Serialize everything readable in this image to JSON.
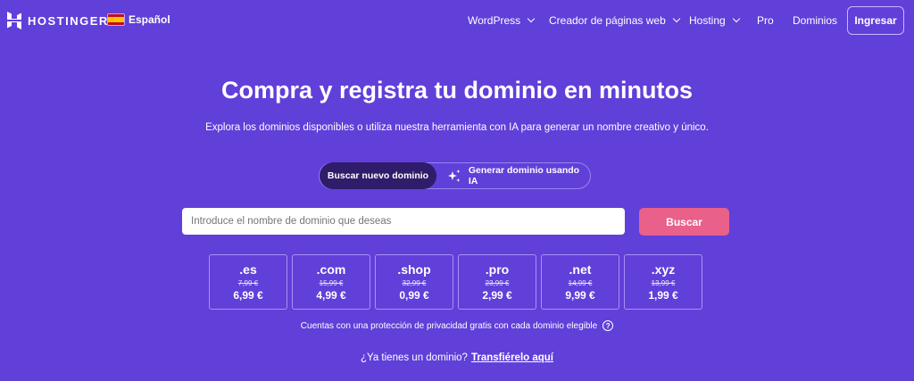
{
  "brand": {
    "name": "HOSTINGER"
  },
  "language": {
    "label": "Español"
  },
  "nav": {
    "items": [
      {
        "label": "WordPress",
        "dropdown": true
      },
      {
        "label": "Creador de páginas web",
        "dropdown": true
      },
      {
        "label": "Hosting",
        "dropdown": true
      },
      {
        "label": "Pro",
        "dropdown": false
      },
      {
        "label": "Dominios",
        "dropdown": false
      }
    ],
    "login": "Ingresar"
  },
  "hero": {
    "title": "Compra y registra tu dominio en minutos",
    "subtitle": "Explora los dominios disponibles o utiliza nuestra herramienta con IA para generar un nombre creativo y único."
  },
  "tabs": [
    {
      "label": "Buscar nuevo dominio",
      "active": true
    },
    {
      "label": "Generar dominio usando IA",
      "icon": "sparkles-icon",
      "active": false
    }
  ],
  "search": {
    "placeholder": "Introduce el nombre de dominio que deseas",
    "button": "Buscar"
  },
  "tlds": [
    {
      "name": ".es",
      "old": "7,99 €",
      "price": "6,99 €"
    },
    {
      "name": ".com",
      "old": "15,99 €",
      "price": "4,99 €"
    },
    {
      "name": ".shop",
      "old": "32,99 €",
      "price": "0,99 €"
    },
    {
      "name": ".pro",
      "old": "23,99 €",
      "price": "2,99 €"
    },
    {
      "name": ".net",
      "old": "14,99 €",
      "price": "9,99 €"
    },
    {
      "name": ".xyz",
      "old": "13,99 €",
      "price": "1,99 €"
    }
  ],
  "privacy": {
    "text": "Cuentas con una protección de privacidad gratis con cada dominio elegible",
    "icon": "?"
  },
  "transfer": {
    "question": "¿Ya tienes un dominio?",
    "link": "Transfiérelo aquí"
  },
  "colors": {
    "background": "#613fd9",
    "button": "#e9608a",
    "active_tab": "#2f1c6a"
  }
}
